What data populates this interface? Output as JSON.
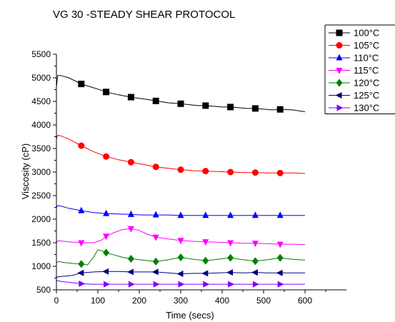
{
  "chart_data": {
    "type": "line",
    "title": "VG 30 -STEADY SHEAR PROTOCOL",
    "xlabel": "Time (secs)",
    "ylabel": "Viscosity (cP)",
    "xlim": [
      0,
      700
    ],
    "ylim": [
      500,
      5500
    ],
    "xticks": [
      0,
      100,
      200,
      300,
      400,
      500,
      600
    ],
    "yticks": [
      500,
      1000,
      1500,
      2000,
      2500,
      3000,
      3500,
      4000,
      4500,
      5000,
      5500
    ],
    "grid": false,
    "legend_position": "top-right",
    "series": [
      {
        "name": "100°C",
        "color": "#000000",
        "marker": "square",
        "x": [
          0,
          3,
          10,
          30,
          60,
          100,
          120,
          150,
          180,
          220,
          240,
          270,
          300,
          340,
          360,
          400,
          420,
          460,
          480,
          520,
          540,
          570,
          600
        ],
        "y": [
          4800,
          5050,
          5050,
          5000,
          4870,
          4760,
          4700,
          4640,
          4590,
          4540,
          4510,
          4470,
          4450,
          4410,
          4410,
          4380,
          4380,
          4350,
          4350,
          4320,
          4330,
          4320,
          4280
        ],
        "marker_x": [
          60,
          120,
          180,
          240,
          300,
          360,
          420,
          480,
          540
        ],
        "marker_y": [
          4870,
          4700,
          4590,
          4510,
          4450,
          4410,
          4380,
          4350,
          4330
        ]
      },
      {
        "name": "105°C",
        "color": "#ff0000",
        "marker": "circle",
        "x": [
          0,
          3,
          10,
          30,
          60,
          90,
          120,
          150,
          180,
          210,
          240,
          270,
          300,
          330,
          360,
          390,
          420,
          450,
          480,
          510,
          540,
          570,
          600
        ],
        "y": [
          3700,
          3780,
          3770,
          3700,
          3560,
          3430,
          3330,
          3260,
          3210,
          3160,
          3110,
          3080,
          3050,
          3030,
          3020,
          3010,
          3000,
          2990,
          2990,
          2980,
          2980,
          2980,
          2970
        ],
        "marker_x": [
          60,
          120,
          180,
          240,
          300,
          360,
          420,
          480,
          540
        ],
        "marker_y": [
          3560,
          3330,
          3210,
          3110,
          3050,
          3020,
          3000,
          2990,
          2980
        ]
      },
      {
        "name": "110°C",
        "color": "#0000ff",
        "marker": "triangle-up",
        "x": [
          0,
          3,
          10,
          30,
          60,
          90,
          120,
          150,
          180,
          210,
          240,
          270,
          300,
          330,
          360,
          390,
          420,
          450,
          480,
          510,
          540,
          570,
          600
        ],
        "y": [
          2250,
          2290,
          2280,
          2230,
          2180,
          2140,
          2120,
          2110,
          2100,
          2090,
          2090,
          2090,
          2080,
          2080,
          2080,
          2080,
          2080,
          2080,
          2080,
          2080,
          2080,
          2080,
          2080
        ],
        "marker_x": [
          60,
          120,
          180,
          240,
          300,
          360,
          420,
          480,
          540
        ],
        "marker_y": [
          2180,
          2120,
          2100,
          2090,
          2080,
          2080,
          2080,
          2080,
          2080
        ]
      },
      {
        "name": "115°C",
        "color": "#ff00ff",
        "marker": "triangle-down",
        "x": [
          0,
          3,
          10,
          30,
          60,
          90,
          110,
          120,
          140,
          160,
          180,
          200,
          220,
          240,
          270,
          300,
          330,
          360,
          390,
          420,
          450,
          480,
          510,
          540,
          570,
          600
        ],
        "y": [
          1500,
          1540,
          1540,
          1520,
          1500,
          1500,
          1560,
          1640,
          1720,
          1780,
          1800,
          1760,
          1680,
          1620,
          1580,
          1550,
          1530,
          1520,
          1510,
          1500,
          1490,
          1490,
          1480,
          1470,
          1470,
          1460
        ],
        "marker_x": [
          60,
          120,
          180,
          240,
          300,
          360,
          420,
          480,
          540
        ],
        "marker_y": [
          1500,
          1640,
          1800,
          1620,
          1550,
          1520,
          1500,
          1490,
          1470
        ]
      },
      {
        "name": "120°C",
        "color": "#008000",
        "marker": "diamond",
        "x": [
          0,
          5,
          20,
          40,
          60,
          75,
          90,
          100,
          110,
          120,
          140,
          160,
          180,
          210,
          240,
          270,
          300,
          330,
          360,
          390,
          420,
          450,
          480,
          510,
          540,
          570,
          600
        ],
        "y": [
          1080,
          1100,
          1080,
          1060,
          1050,
          1030,
          1200,
          1350,
          1330,
          1290,
          1240,
          1190,
          1160,
          1130,
          1100,
          1140,
          1190,
          1150,
          1120,
          1150,
          1180,
          1140,
          1110,
          1140,
          1180,
          1150,
          1130
        ],
        "marker_x": [
          60,
          120,
          180,
          240,
          300,
          360,
          420,
          480,
          540
        ],
        "marker_y": [
          1050,
          1290,
          1160,
          1100,
          1190,
          1120,
          1180,
          1110,
          1180
        ]
      },
      {
        "name": "125°C",
        "color": "#000080",
        "marker": "triangle-left",
        "x": [
          0,
          5,
          20,
          40,
          60,
          90,
          120,
          150,
          180,
          210,
          240,
          270,
          300,
          330,
          360,
          390,
          420,
          450,
          480,
          510,
          540,
          570,
          600
        ],
        "y": [
          760,
          780,
          790,
          810,
          860,
          880,
          890,
          890,
          880,
          880,
          880,
          860,
          840,
          850,
          850,
          860,
          870,
          860,
          870,
          860,
          860,
          860,
          860
        ],
        "marker_x": [
          60,
          120,
          180,
          240,
          300,
          360,
          420,
          480,
          540
        ],
        "marker_y": [
          860,
          890,
          880,
          880,
          840,
          850,
          870,
          870,
          860
        ]
      },
      {
        "name": "130°C",
        "color": "#8000ff",
        "marker": "triangle-right",
        "x": [
          0,
          3,
          10,
          30,
          60,
          90,
          120,
          150,
          180,
          210,
          240,
          270,
          300,
          330,
          360,
          390,
          420,
          450,
          480,
          510,
          540,
          570,
          600
        ],
        "y": [
          680,
          700,
          680,
          660,
          630,
          620,
          620,
          620,
          620,
          620,
          620,
          620,
          620,
          620,
          620,
          620,
          620,
          620,
          620,
          620,
          620,
          620,
          620
        ],
        "marker_x": [
          60,
          120,
          180,
          240,
          300,
          360,
          420,
          480,
          540
        ],
        "marker_y": [
          630,
          620,
          620,
          620,
          620,
          620,
          620,
          620,
          620
        ]
      }
    ]
  }
}
